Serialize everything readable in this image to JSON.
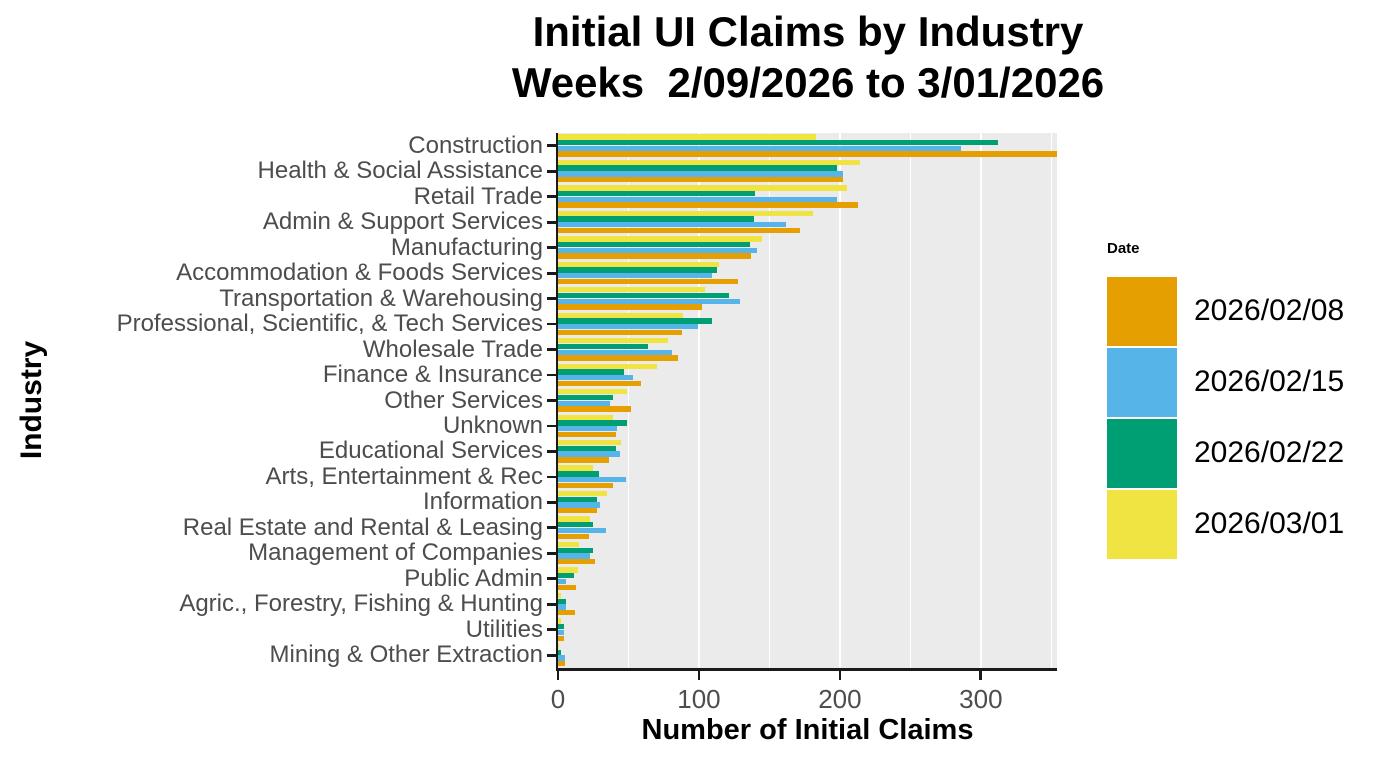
{
  "title": {
    "line1": "Initial UI Claims by Industry",
    "line2": "Weeks  2/09/2026 to 3/01/2026"
  },
  "axes": {
    "x_title": "Number of Initial Claims",
    "y_title": "Industry",
    "x_tick_labels": [
      "0",
      "100",
      "200",
      "300"
    ]
  },
  "legend": {
    "title": "Date",
    "position": "right",
    "items": [
      {
        "label": "2026/02/08",
        "color": "#E69F00"
      },
      {
        "label": "2026/02/15",
        "color": "#56B4E9"
      },
      {
        "label": "2026/02/22",
        "color": "#009E73"
      },
      {
        "label": "2026/03/01",
        "color": "#F0E442"
      }
    ]
  },
  "colors": {
    "panel_background": "#EBEBEB",
    "gridline": "#FFFFFF",
    "axis_text": "#4D4D4D",
    "axis_line": "#1A1A1A"
  },
  "chart_data": {
    "type": "bar",
    "orientation": "horizontal",
    "title": "Initial UI Claims by Industry Weeks 2/09/2026 to 3/01/2026",
    "xlabel": "Number of Initial Claims",
    "ylabel": "Industry",
    "xlim": [
      0,
      354
    ],
    "x_ticks": [
      0,
      100,
      200,
      300
    ],
    "gridlines_major": [
      100,
      200,
      300
    ],
    "gridlines_minor": [
      50,
      150,
      250,
      350
    ],
    "grid": true,
    "legend_position": "right",
    "categories": [
      "Construction",
      "Health & Social Assistance",
      "Retail Trade",
      "Admin & Support Services",
      "Manufacturing",
      "Accommodation & Foods Services",
      "Transportation & Warehousing",
      "Professional, Scientific, & Tech Services",
      "Wholesale Trade",
      "Finance & Insurance",
      "Other Services",
      "Unknown",
      "Educational Services",
      "Arts, Entertainment & Rec",
      "Information",
      "Real Estate and Rental & Leasing",
      "Management of Companies",
      "Public Admin",
      "Agric., Forestry, Fishing & Hunting",
      "Utilities",
      "Mining & Other Extraction"
    ],
    "series": [
      {
        "name": "2026/02/08",
        "color": "#E69F00",
        "values": [
          354,
          202,
          213,
          172,
          137,
          128,
          102,
          88,
          85,
          59,
          52,
          41,
          36,
          39,
          28,
          22,
          26,
          13,
          12,
          4,
          5
        ]
      },
      {
        "name": "2026/02/15",
        "color": "#56B4E9",
        "values": [
          286,
          202,
          198,
          162,
          141,
          109,
          129,
          99,
          81,
          53,
          37,
          42,
          44,
          48,
          30,
          34,
          23,
          6,
          6,
          4,
          5
        ]
      },
      {
        "name": "2026/02/22",
        "color": "#009E73",
        "values": [
          312,
          198,
          140,
          139,
          136,
          113,
          121,
          109,
          64,
          47,
          39,
          49,
          41,
          29,
          28,
          25,
          25,
          11,
          6,
          4,
          2
        ]
      },
      {
        "name": "2026/03/01",
        "color": "#F0E442",
        "values": [
          183,
          214,
          205,
          181,
          145,
          114,
          104,
          89,
          78,
          70,
          49,
          39,
          45,
          25,
          35,
          23,
          15,
          14,
          2,
          2,
          1
        ]
      }
    ]
  }
}
